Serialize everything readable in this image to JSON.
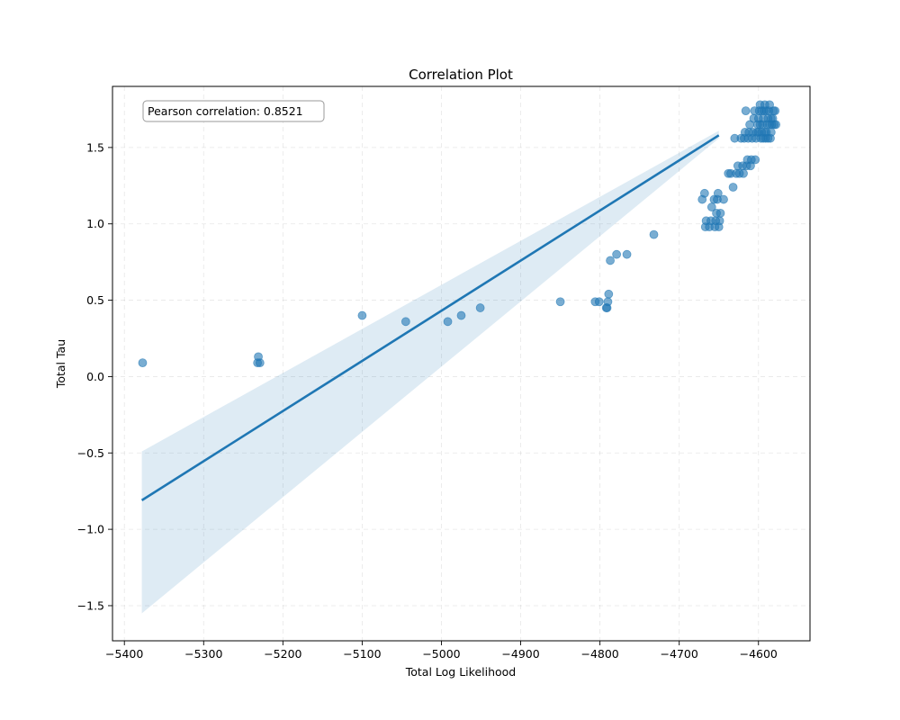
{
  "chart_data": {
    "type": "scatter",
    "title": "Correlation Plot",
    "xlabel": "Total Log Likelihood",
    "ylabel": "Total Tau",
    "xlim": [
      -5415,
      -4535
    ],
    "ylim": [
      -1.73,
      1.9
    ],
    "x_ticks": [
      -5400,
      -5300,
      -5200,
      -5100,
      -5000,
      -4900,
      -4800,
      -4700,
      -4600
    ],
    "y_ticks": [
      -1.5,
      -1.0,
      -0.5,
      0.0,
      0.5,
      1.0,
      1.5
    ],
    "x_tick_labels": [
      "−5400",
      "−5300",
      "−5200",
      "−5100",
      "−5000",
      "−4900",
      "−4800",
      "−4700",
      "−4600"
    ],
    "y_tick_labels": [
      "−1.5",
      "−1.0",
      "−0.5",
      "0.0",
      "0.5",
      "1.0",
      "1.5"
    ],
    "grid": true,
    "annotation": "Pearson correlation: 0.8521",
    "colors": {
      "points": "#1f77b4",
      "line": "#1f77b4",
      "band": "#1f77b4"
    },
    "points": [
      [
        -5377,
        0.09
      ],
      [
        -5231,
        0.13
      ],
      [
        -5232,
        0.09
      ],
      [
        -5229,
        0.09
      ],
      [
        -5100,
        0.4
      ],
      [
        -5045,
        0.36
      ],
      [
        -4992,
        0.36
      ],
      [
        -4975,
        0.4
      ],
      [
        -4951,
        0.45
      ],
      [
        -4850,
        0.49
      ],
      [
        -4806,
        0.49
      ],
      [
        -4801,
        0.49
      ],
      [
        -4792,
        0.45
      ],
      [
        -4791,
        0.45
      ],
      [
        -4790,
        0.49
      ],
      [
        -4789,
        0.54
      ],
      [
        -4787,
        0.76
      ],
      [
        -4779,
        0.8
      ],
      [
        -4766,
        0.8
      ],
      [
        -4732,
        0.93
      ],
      [
        -4671,
        1.16
      ],
      [
        -4668,
        1.2
      ],
      [
        -4667,
        0.98
      ],
      [
        -4666,
        1.02
      ],
      [
        -4662,
        0.98
      ],
      [
        -4660,
        1.02
      ],
      [
        -4659,
        1.11
      ],
      [
        -4656,
        1.16
      ],
      [
        -4655,
        0.98
      ],
      [
        -4654,
        1.02
      ],
      [
        -4653,
        1.07
      ],
      [
        -4652,
        1.16
      ],
      [
        -4651,
        1.2
      ],
      [
        -4650,
        0.98
      ],
      [
        -4649,
        1.02
      ],
      [
        -4648,
        1.07
      ],
      [
        -4644,
        1.16
      ],
      [
        -4638,
        1.33
      ],
      [
        -4635,
        1.33
      ],
      [
        -4632,
        1.24
      ],
      [
        -4630,
        1.56
      ],
      [
        -4628,
        1.33
      ],
      [
        -4626,
        1.38
      ],
      [
        -4624,
        1.33
      ],
      [
        -4622,
        1.56
      ],
      [
        -4620,
        1.38
      ],
      [
        -4619,
        1.33
      ],
      [
        -4618,
        1.56
      ],
      [
        -4617,
        1.6
      ],
      [
        -4616,
        1.74
      ],
      [
        -4615,
        1.38
      ],
      [
        -4614,
        1.42
      ],
      [
        -4613,
        1.56
      ],
      [
        -4612,
        1.6
      ],
      [
        -4611,
        1.65
      ],
      [
        -4610,
        1.38
      ],
      [
        -4609,
        1.42
      ],
      [
        -4608,
        1.56
      ],
      [
        -4607,
        1.6
      ],
      [
        -4606,
        1.69
      ],
      [
        -4605,
        1.74
      ],
      [
        -4604,
        1.42
      ],
      [
        -4603,
        1.56
      ],
      [
        -4602,
        1.6
      ],
      [
        -4601,
        1.65
      ],
      [
        -4600,
        1.69
      ],
      [
        -4599,
        1.74
      ],
      [
        -4598,
        1.78
      ],
      [
        -4597,
        1.56
      ],
      [
        -4596,
        1.6
      ],
      [
        -4595,
        1.65
      ],
      [
        -4594,
        1.69
      ],
      [
        -4593,
        1.74
      ],
      [
        -4592,
        1.78
      ],
      [
        -4591,
        1.56
      ],
      [
        -4590,
        1.6
      ],
      [
        -4589,
        1.65
      ],
      [
        -4588,
        1.69
      ],
      [
        -4587,
        1.74
      ],
      [
        -4586,
        1.78
      ],
      [
        -4585,
        1.56
      ],
      [
        -4584,
        1.6
      ],
      [
        -4583,
        1.65
      ],
      [
        -4582,
        1.69
      ],
      [
        -4581,
        1.74
      ],
      [
        -4580,
        1.65
      ],
      [
        -4579,
        1.74
      ],
      [
        -4578,
        1.65
      ],
      [
        -4600,
        1.6
      ],
      [
        -4598,
        1.65
      ],
      [
        -4596,
        1.74
      ],
      [
        -4594,
        1.56
      ],
      [
        -4592,
        1.6
      ],
      [
        -4590,
        1.74
      ],
      [
        -4588,
        1.56
      ],
      [
        -4586,
        1.65
      ],
      [
        -4584,
        1.69
      ]
    ],
    "regression": {
      "x": [
        -5378,
        -4650
      ],
      "y": [
        -0.81,
        1.58
      ]
    },
    "confidence_band": {
      "x": [
        -5378,
        -4650
      ],
      "upper": [
        -0.49,
        1.61
      ],
      "lower": [
        -1.55,
        1.56
      ]
    }
  }
}
